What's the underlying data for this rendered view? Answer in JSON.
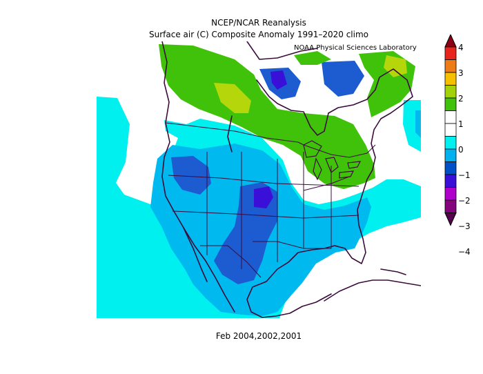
{
  "title": {
    "line1": "NCEP/NCAR Reanalysis",
    "line2": "Surface air (C) Composite Anomaly 1991–2020 climo"
  },
  "credit": "NOAA Physical Sciences Laboratory",
  "footer": "Feb 2004,2002,2001",
  "colorbar": {
    "labels": [
      "4",
      "3",
      "2",
      "1",
      "0",
      "−1",
      "−2",
      "−3",
      "−4"
    ],
    "colors": [
      "#8b0014",
      "#e8251c",
      "#ef7b17",
      "#f5c000",
      "#a3d20b",
      "#41c20a",
      "#ffffff",
      "#ffffff",
      "#00eff0",
      "#00b0ef",
      "#0050c8",
      "#3a10d8",
      "#b000cc",
      "#84047e",
      "#560050"
    ]
  },
  "map_colors": {
    "ocean_cyan": "#00efef",
    "light_blue": "#00b9ee",
    "mid_blue": "#1c5bd0",
    "deep_blue": "#3a10d8",
    "light_green": "#41c20a",
    "yellow_green": "#b4d60b",
    "coast": "#3b0a3b"
  }
}
